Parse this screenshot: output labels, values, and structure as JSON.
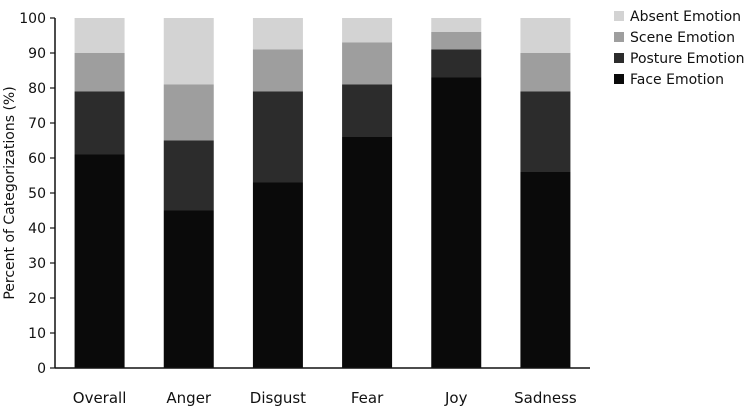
{
  "chart_data": {
    "type": "bar",
    "stacked": true,
    "categories": [
      "Overall",
      "Anger",
      "Disgust",
      "Fear",
      "Joy",
      "Sadness"
    ],
    "series": [
      {
        "name": "Face Emotion",
        "color": "#0a0a0a",
        "values": [
          61,
          45,
          53,
          66,
          83,
          56
        ]
      },
      {
        "name": "Posture Emotion",
        "color": "#2c2c2c",
        "values": [
          18,
          20,
          26,
          15,
          8,
          23
        ]
      },
      {
        "name": "Scene Emotion",
        "color": "#9e9e9e",
        "values": [
          11,
          16,
          12,
          12,
          5,
          11
        ]
      },
      {
        "name": "Absent Emotion",
        "color": "#d3d3d3",
        "values": [
          10,
          19,
          9,
          7,
          4,
          10
        ]
      }
    ],
    "title": "",
    "xlabel": "",
    "ylabel": "Percent of Categorizations (%)",
    "ylim": [
      0,
      100
    ],
    "yticks": [
      0,
      10,
      20,
      30,
      40,
      50,
      60,
      70,
      80,
      90,
      100
    ],
    "legend_position": "top-right",
    "legend_order": [
      "Absent Emotion",
      "Scene Emotion",
      "Posture Emotion",
      "Face Emotion"
    ],
    "grid": false
  }
}
